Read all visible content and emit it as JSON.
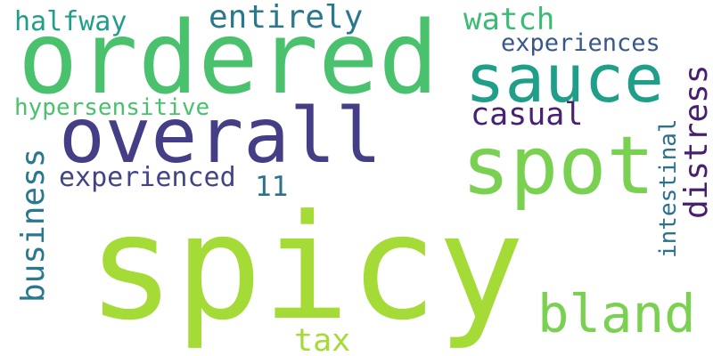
{
  "words": {
    "spicy": {
      "text": "spicy",
      "color": "#a5db36"
    },
    "ordered": {
      "text": "ordered",
      "color": "#4ac16d"
    },
    "overall": {
      "text": "overall",
      "color": "#433e85"
    },
    "sauce": {
      "text": "sauce",
      "color": "#1f9e89"
    },
    "spot": {
      "text": "spot",
      "color": "#7ad151"
    },
    "bland": {
      "text": "bland",
      "color": "#7ad151"
    },
    "entirely": {
      "text": "entirely",
      "color": "#2a788e"
    },
    "watch": {
      "text": "watch",
      "color": "#3bbb75"
    },
    "halfway": {
      "text": "halfway",
      "color": "#1f9e89"
    },
    "experiences": {
      "text": "experiences",
      "color": "#39568c"
    },
    "hypersensitive": {
      "text": "hypersensitive",
      "color": "#4ac16d"
    },
    "casual": {
      "text": "casual",
      "color": "#482173"
    },
    "experienced": {
      "text": "experienced",
      "color": "#414487"
    },
    "eleven": {
      "text": "11",
      "color": "#2c728e"
    },
    "tax": {
      "text": "tax",
      "color": "#a5db36"
    },
    "business": {
      "text": "business",
      "color": "#2a788e"
    },
    "distress": {
      "text": "distress",
      "color": "#481f70"
    },
    "intestinal": {
      "text": "intestinal",
      "color": "#2c728e"
    }
  }
}
